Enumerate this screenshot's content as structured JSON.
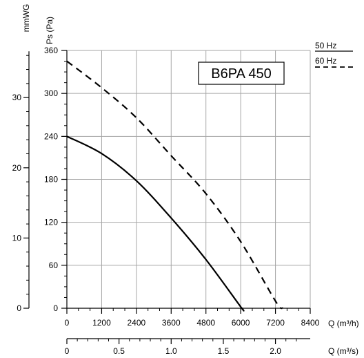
{
  "chart_data": {
    "type": "line",
    "title": "B6PA 450",
    "x": {
      "label": "Q (m³/h)",
      "ticks": [
        0,
        1200,
        2400,
        3600,
        4800,
        6000,
        7200,
        8400
      ],
      "tick_labels": [
        "0",
        "1200",
        "2400",
        "3600",
        "4800",
        "6000",
        "7200",
        "8400"
      ],
      "range": [
        0,
        8400
      ]
    },
    "x2": {
      "label": "Q (m³/s)",
      "ticks": [
        0,
        0.5,
        1.0,
        1.5,
        2.0
      ],
      "tick_labels": [
        "0",
        "0.5",
        "1.0",
        "1.5",
        "2.0"
      ],
      "range": [
        0,
        2.333
      ]
    },
    "y": {
      "label": "Ps (Pa)",
      "ticks": [
        0,
        60,
        120,
        180,
        240,
        300,
        360
      ],
      "tick_labels": [
        "0",
        "60",
        "120",
        "180",
        "240",
        "300",
        "360"
      ],
      "range": [
        0,
        360
      ]
    },
    "y2": {
      "label": "mmWG",
      "ticks": [
        0,
        10,
        20,
        30
      ],
      "tick_labels": [
        "0",
        "10",
        "20",
        "30"
      ],
      "pa_per_unit": 9.80665
    },
    "grid": true,
    "legend": {
      "placement": "top-right",
      "entries": [
        "50 Hz",
        "60 Hz"
      ]
    },
    "series": [
      {
        "name": "50 Hz",
        "style": "solid",
        "points": [
          [
            0,
            240
          ],
          [
            1200,
            216
          ],
          [
            2400,
            178
          ],
          [
            3600,
            126
          ],
          [
            4800,
            68
          ],
          [
            6000,
            2
          ],
          [
            6050,
            0
          ]
        ]
      },
      {
        "name": "60 Hz",
        "style": "dashed",
        "points": [
          [
            0,
            345
          ],
          [
            1200,
            308
          ],
          [
            2400,
            266
          ],
          [
            3600,
            213
          ],
          [
            4800,
            160
          ],
          [
            6000,
            93
          ],
          [
            7200,
            10
          ],
          [
            7450,
            0
          ]
        ]
      }
    ]
  }
}
